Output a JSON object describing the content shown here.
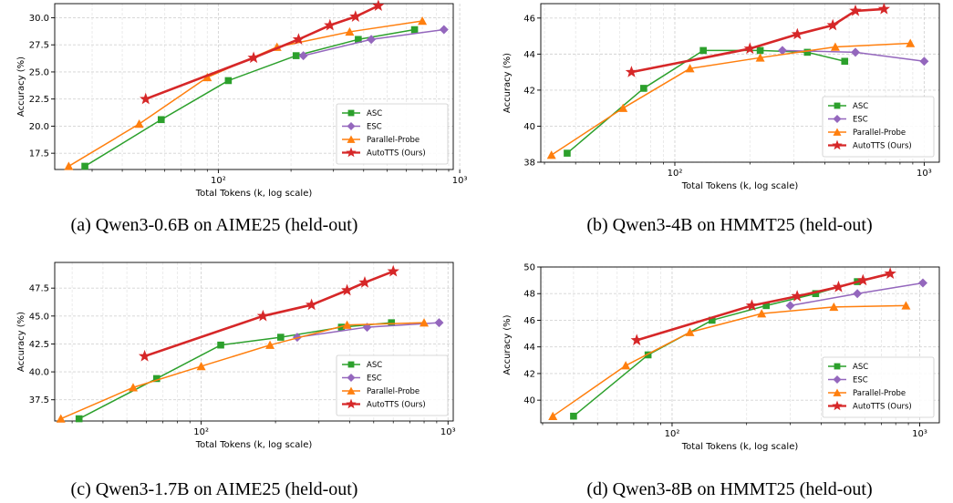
{
  "colors": {
    "ASC": "#2ca02c",
    "ESC": "#9467bd",
    "Parallel-Probe": "#ff7f0e",
    "AutoTTS (Ours)": "#d62728"
  },
  "captions": [
    "(a) Qwen3-0.6B on AIME25 (held-out)",
    "(b) Qwen3-4B on HMMT25 (held-out)",
    "(c) Qwen3-1.7B on AIME25 (held-out)",
    "(d) Qwen3-8B on HMMT25 (held-out)"
  ],
  "chart_data": [
    {
      "type": "line",
      "xlabel": "Total Tokens (k, log scale)",
      "ylabel": "Accuracy (%)",
      "xscale": "log",
      "xlim": [
        21,
        940
      ],
      "ylim": [
        16.0,
        31.3
      ],
      "yticks": [
        17.5,
        20.0,
        22.5,
        25.0,
        27.5,
        30.0
      ],
      "ytick_labels": [
        "17.5",
        "20.0",
        "22.5",
        "25.0",
        "27.5",
        "30.0"
      ],
      "xticks": [
        100,
        1000
      ],
      "xtick_labels": [
        "10²",
        "10³"
      ],
      "grid": true,
      "legend_position": "lower-right",
      "series": [
        {
          "name": "ASC",
          "marker": "square",
          "x": [
            28,
            58,
            110,
            210,
            380,
            650
          ],
          "y": [
            16.3,
            20.6,
            24.2,
            26.5,
            28.0,
            28.9
          ]
        },
        {
          "name": "ESC",
          "marker": "diamond",
          "x": [
            225,
            430,
            860
          ],
          "y": [
            26.5,
            28.0,
            28.9
          ]
        },
        {
          "name": "Parallel-Probe",
          "marker": "triangle",
          "x": [
            24,
            47,
            90,
            175,
            350,
            700
          ],
          "y": [
            16.3,
            20.2,
            24.5,
            27.3,
            28.7,
            29.7
          ]
        },
        {
          "name": "AutoTTS (Ours)",
          "marker": "star",
          "x": [
            50,
            140,
            215,
            290,
            370,
            460
          ],
          "y": [
            22.5,
            26.3,
            28.0,
            29.3,
            30.1,
            31.1
          ]
        }
      ]
    },
    {
      "type": "line",
      "xlabel": "Total Tokens (k, log scale)",
      "ylabel": "Accuracy (%)",
      "xscale": "log",
      "xlim": [
        29,
        1150
      ],
      "ylim": [
        38.0,
        46.8
      ],
      "yticks": [
        38,
        40,
        42,
        44,
        46
      ],
      "ytick_labels": [
        "38",
        "40",
        "42",
        "44",
        "46"
      ],
      "xticks": [
        100,
        1000
      ],
      "xtick_labels": [
        "10²",
        "10³"
      ],
      "grid": true,
      "legend_position": "lower-right",
      "series": [
        {
          "name": "ASC",
          "marker": "square",
          "x": [
            37,
            75,
            130,
            220,
            340,
            480
          ],
          "y": [
            38.5,
            42.1,
            44.2,
            44.2,
            44.1,
            43.6
          ]
        },
        {
          "name": "ESC",
          "marker": "diamond",
          "x": [
            270,
            530,
            1000
          ],
          "y": [
            44.2,
            44.1,
            43.6
          ]
        },
        {
          "name": "Parallel-Probe",
          "marker": "triangle",
          "x": [
            32,
            62,
            115,
            220,
            440,
            880
          ],
          "y": [
            38.4,
            41.0,
            43.2,
            43.8,
            44.4,
            44.6
          ]
        },
        {
          "name": "AutoTTS (Ours)",
          "marker": "star",
          "x": [
            67,
            200,
            310,
            430,
            530,
            690
          ],
          "y": [
            43.0,
            44.3,
            45.1,
            45.6,
            46.4,
            46.5
          ]
        }
      ]
    },
    {
      "type": "line",
      "xlabel": "Total Tokens (k, log scale)",
      "ylabel": "Accuracy (%)",
      "xscale": "log",
      "xlim": [
        25.5,
        1050
      ],
      "ylim": [
        35.6,
        49.8
      ],
      "yticks": [
        37.5,
        40.0,
        42.5,
        45.0,
        47.5
      ],
      "ytick_labels": [
        "37.5",
        "40.0",
        "42.5",
        "45.0",
        "47.5"
      ],
      "xticks": [
        100,
        1000
      ],
      "xtick_labels": [
        "10²",
        "10³"
      ],
      "grid": true,
      "legend_position": "lower-right",
      "series": [
        {
          "name": "ASC",
          "marker": "square",
          "x": [
            32,
            66,
            120,
            210,
            370,
            590
          ],
          "y": [
            35.8,
            39.4,
            42.4,
            43.1,
            44.0,
            44.4
          ]
        },
        {
          "name": "ESC",
          "marker": "diamond",
          "x": [
            245,
            470,
            920
          ],
          "y": [
            43.1,
            44.0,
            44.4
          ]
        },
        {
          "name": "Parallel-Probe",
          "marker": "triangle",
          "x": [
            27,
            53,
            100,
            190,
            390,
            800
          ],
          "y": [
            35.8,
            38.6,
            40.5,
            42.4,
            44.2,
            44.4
          ]
        },
        {
          "name": "AutoTTS (Ours)",
          "marker": "star",
          "x": [
            59,
            178,
            280,
            390,
            460,
            600
          ],
          "y": [
            41.4,
            45.0,
            46.0,
            47.3,
            48.0,
            49.0
          ]
        }
      ]
    },
    {
      "type": "line",
      "xlabel": "Total Tokens (k, log scale)",
      "ylabel": "Accuracy (%)",
      "xscale": "log",
      "xlim": [
        29.5,
        1200
      ],
      "ylim": [
        38.3,
        50.0
      ],
      "yticks": [
        40,
        42,
        44,
        46,
        48,
        50
      ],
      "ytick_labels": [
        "40",
        "42",
        "44",
        "46",
        "48",
        "50"
      ],
      "xticks": [
        100,
        1000
      ],
      "xtick_labels": [
        "10²",
        "10³"
      ],
      "grid": true,
      "legend_position": "lower-right",
      "series": [
        {
          "name": "ASC",
          "marker": "square",
          "x": [
            40,
            80,
            145,
            240,
            380,
            560
          ],
          "y": [
            38.8,
            43.4,
            46.0,
            47.1,
            48.0,
            48.9
          ]
        },
        {
          "name": "ESC",
          "marker": "diamond",
          "x": [
            300,
            560,
            1030
          ],
          "y": [
            47.1,
            48.0,
            48.8
          ]
        },
        {
          "name": "Parallel-Probe",
          "marker": "triangle",
          "x": [
            33,
            65,
            118,
            230,
            450,
            880
          ],
          "y": [
            38.8,
            42.6,
            45.1,
            46.5,
            47.0,
            47.1
          ]
        },
        {
          "name": "AutoTTS (Ours)",
          "marker": "star",
          "x": [
            72,
            210,
            320,
            470,
            590,
            760
          ],
          "y": [
            44.5,
            47.1,
            47.8,
            48.5,
            49.0,
            49.5
          ]
        }
      ]
    }
  ]
}
